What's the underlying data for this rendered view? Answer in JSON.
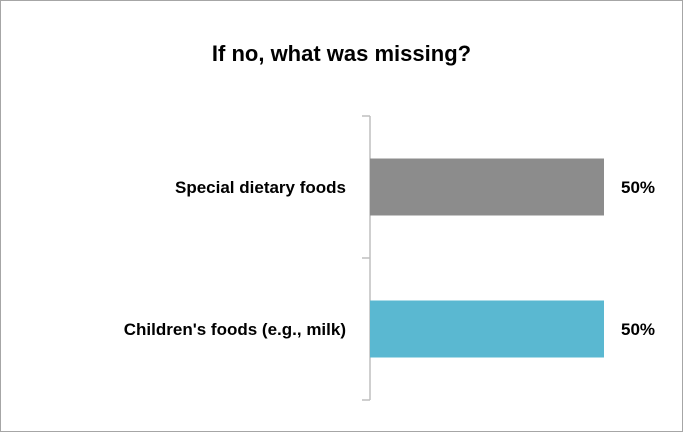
{
  "chart_data": {
    "type": "bar",
    "orientation": "horizontal",
    "title": "If no, what was missing?",
    "categories": [
      "Special dietary foods",
      "Children's foods (e.g., milk)"
    ],
    "values": [
      50,
      50
    ],
    "value_labels": [
      "50%",
      "50%"
    ],
    "colors": [
      "#8c8c8c",
      "#5ab8d1"
    ],
    "xlim": [
      0,
      100
    ],
    "grid": false,
    "legend": "none"
  }
}
